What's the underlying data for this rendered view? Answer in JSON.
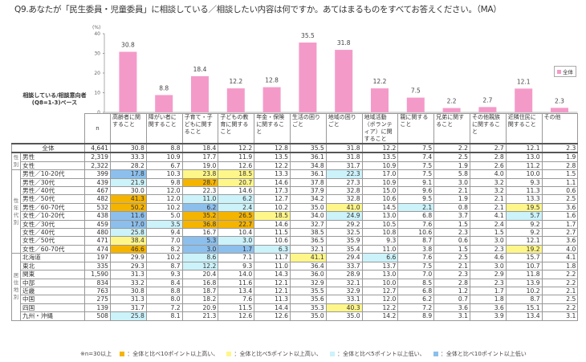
{
  "title": "Q9.あなたが「民生委員・児童委員」に相談している／相談したい内容は何ですか。あてはまるものをすべてお答えください。（MA）",
  "side_label": "相談している/相談意向者 (Q8=1-3)ベース",
  "colors": {
    "bar": "#f49ac9",
    "orange": "#f5b400",
    "yellow": "#fff68a",
    "cyan": "#ccf2fa",
    "blue": "#8cbfec"
  },
  "chart_data": {
    "type": "bar",
    "ylabel": "(%)",
    "ylim": [
      0,
      40
    ],
    "yticks": [
      0,
      10,
      20,
      30,
      40
    ],
    "legend": "全体",
    "legend_position": "right",
    "categories": [
      "高齢者に関すること",
      "障がい者に関すること",
      "子育て・子どもに関すること",
      "子どもの教育に関すること",
      "年金・保険に関すること",
      "生活の困りごと",
      "地域の困りごと",
      "地域活動（ボランティア）に関すること",
      "親に関すること",
      "兄弟に関すること",
      "その他親族に関すること",
      "近隣住民に関すること",
      "その他"
    ],
    "values": [
      30.8,
      8.8,
      18.4,
      12.2,
      12.8,
      35.5,
      31.8,
      12.2,
      7.5,
      2.2,
      2.7,
      12.1,
      2.3
    ]
  },
  "table": {
    "n_header": "n",
    "groups": {
      "gender": "性別",
      "gender_age": "性年代別",
      "region": "居住地別"
    },
    "rows": [
      {
        "label": "全体",
        "n": "4,641",
        "v": [
          "30.8",
          "8.8",
          "18.4",
          "12.2",
          "12.8",
          "35.5",
          "31.8",
          "12.2",
          "7.5",
          "2.2",
          "2.7",
          "12.1",
          "2.3"
        ],
        "h": "-------------"
      },
      {
        "label": "男性",
        "n": "2,319",
        "v": [
          "33.3",
          "10.9",
          "17.7",
          "11.9",
          "13.5",
          "36.1",
          "31.8",
          "13.5",
          "7.4",
          "2.5",
          "2.8",
          "13.0",
          "1.9"
        ],
        "h": "-------------"
      },
      {
        "label": "女性",
        "n": "2,322",
        "v": [
          "28.2",
          "6.7",
          "19.0",
          "12.6",
          "12.2",
          "34.8",
          "31.7",
          "10.9",
          "7.5",
          "1.9",
          "2.6",
          "11.2",
          "2.8"
        ],
        "h": "-------------"
      },
      {
        "label": "男性／10-20代",
        "n": "399",
        "v": [
          "17.8",
          "10.3",
          "23.8",
          "18.5",
          "13.3",
          "36.1",
          "22.3",
          "17.0",
          "7.5",
          "5.8",
          "4.0",
          "10.0",
          "1.5"
        ],
        "h": "b-yy--c------"
      },
      {
        "label": "男性／30代",
        "n": "439",
        "v": [
          "21.9",
          "9.8",
          "28.7",
          "20.7",
          "14.6",
          "37.8",
          "27.3",
          "10.9",
          "9.1",
          "3.0",
          "3.2",
          "9.3",
          "1.1"
        ],
        "h": "c-oy---------"
      },
      {
        "label": "男性／40代",
        "n": "467",
        "v": [
          "30.0",
          "12.0",
          "22.3",
          "14.6",
          "17.3",
          "37.9",
          "32.8",
          "15.0",
          "9.6",
          "2.1",
          "3.2",
          "11.3",
          "0.6"
        ],
        "h": "-------------"
      },
      {
        "label": "男性／50代",
        "n": "482",
        "v": [
          "41.3",
          "12.0",
          "11.0",
          "6.2",
          "12.7",
          "34.2",
          "32.8",
          "10.6",
          "9.5",
          "1.9",
          "2.1",
          "13.3",
          "2.5"
        ],
        "h": "o-cc---------"
      },
      {
        "label": "男性／60-70代",
        "n": "532",
        "v": [
          "50.2",
          "10.2",
          "6.2",
          "2.4",
          "10.2",
          "35.0",
          "41.0",
          "14.5",
          "2.1",
          "0.8",
          "2.1",
          "19.5",
          "3.6"
        ],
        "h": "o-bc--y-c--y-"
      },
      {
        "label": "女性／10-20代",
        "n": "438",
        "v": [
          "11.6",
          "5.0",
          "35.2",
          "26.5",
          "18.5",
          "34.0",
          "24.9",
          "13.0",
          "6.8",
          "3.7",
          "4.1",
          "5.7",
          "1.6"
        ],
        "h": "b-ooy-c----c-"
      },
      {
        "label": "女性／30代",
        "n": "459",
        "v": [
          "17.0",
          "3.5",
          "36.8",
          "22.7",
          "14.6",
          "32.7",
          "29.2",
          "10.5",
          "7.6",
          "1.5",
          "2.4",
          "9.2",
          "1.7"
        ],
        "h": "bcoo---------"
      },
      {
        "label": "女性／40代",
        "n": "480",
        "v": [
          "25.8",
          "9.4",
          "16.7",
          "10.4",
          "11.5",
          "38.5",
          "32.5",
          "10.8",
          "10.6",
          "2.3",
          "1.5",
          "9.2",
          "2.7"
        ],
        "h": "c------------"
      },
      {
        "label": "女性／50代",
        "n": "471",
        "v": [
          "38.4",
          "7.0",
          "5.3",
          "3.0",
          "10.6",
          "36.5",
          "35.9",
          "9.3",
          "8.7",
          "0.6",
          "3.0",
          "12.1",
          "3.6"
        ],
        "h": "y-bc---------"
      },
      {
        "label": "女性／60-70代",
        "n": "474",
        "v": [
          "46.6",
          "8.2",
          "3.0",
          "1.7",
          "6.3",
          "32.1",
          "35.4",
          "11.0",
          "3.8",
          "1.5",
          "2.3",
          "19.2",
          "4.0"
        ],
        "h": "o-bbc------y-"
      },
      {
        "label": "北海道",
        "n": "197",
        "v": [
          "29.9",
          "10.2",
          "8.6",
          "7.1",
          "11.7",
          "41.1",
          "29.4",
          "6.6",
          "7.6",
          "2.5",
          "4.6",
          "15.7",
          "4.1"
        ],
        "h": "--c--y-c-----"
      },
      {
        "label": "東北",
        "n": "335",
        "v": [
          "29.3",
          "8.7",
          "12.2",
          "9.3",
          "11.0",
          "36.4",
          "33.7",
          "13.7",
          "7.5",
          "2.1",
          "3.0",
          "10.7",
          "1.8"
        ],
        "h": "--c----------"
      },
      {
        "label": "関東",
        "n": "1,590",
        "v": [
          "31.3",
          "9.3",
          "20.4",
          "14.0",
          "14.3",
          "36.0",
          "28.9",
          "13.0",
          "7.0",
          "2.3",
          "2.9",
          "11.8",
          "2.2"
        ],
        "h": "-------------"
      },
      {
        "label": "中部",
        "n": "834",
        "v": [
          "33.2",
          "8.4",
          "16.8",
          "11.6",
          "12.1",
          "32.9",
          "32.1",
          "10.0",
          "8.5",
          "2.8",
          "2.3",
          "13.9",
          "2.2"
        ],
        "h": "-------------"
      },
      {
        "label": "近畿",
        "n": "763",
        "v": [
          "30.8",
          "8.8",
          "18.7",
          "13.4",
          "12.1",
          "35.5",
          "32.9",
          "12.7",
          "6.8",
          "1.2",
          "1.7",
          "10.2",
          "2.1"
        ],
        "h": "-------------"
      },
      {
        "label": "中国",
        "n": "275",
        "v": [
          "31.3",
          "8.0",
          "18.2",
          "7.6",
          "11.3",
          "35.6",
          "33.1",
          "12.0",
          "6.2",
          "0.7",
          "1.8",
          "8.7",
          "2.5"
        ],
        "h": "-------------"
      },
      {
        "label": "四国",
        "n": "139",
        "v": [
          "31.7",
          "7.2",
          "20.9",
          "11.5",
          "14.4",
          "35.3",
          "40.3",
          "12.2",
          "7.2",
          "3.6",
          "3.6",
          "15.1",
          "2.2"
        ],
        "h": "------y------"
      },
      {
        "label": "九州・沖縄",
        "n": "508",
        "v": [
          "25.8",
          "8.1",
          "21.3",
          "12.6",
          "12.6",
          "35.0",
          "35.0",
          "14.2",
          "8.9",
          "3.1",
          "3.9",
          "13.4",
          "3.1"
        ],
        "h": "c------------"
      }
    ]
  },
  "note": {
    "base": "※n=30以上",
    "orange": "：全体と比べ10ポイント以上高い、",
    "yellow": "：全体と比べ5ポイント以上高い、",
    "cyan": "：全体と比べ5ポイント以上低い、",
    "blue": "：全体と比べ10ポイント以上低い"
  }
}
